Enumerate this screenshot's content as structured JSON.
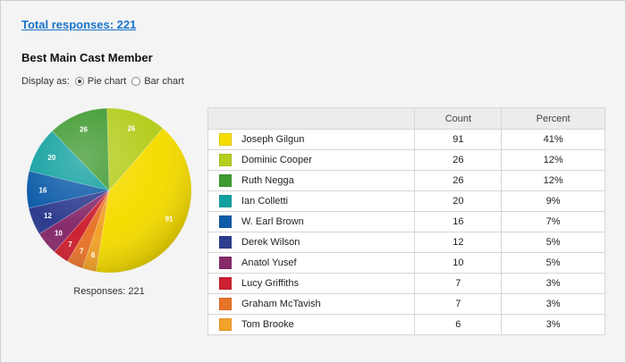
{
  "header": {
    "total_link": "Total responses: 221"
  },
  "question": {
    "title": "Best Main Cast Member",
    "display_label": "Display as:",
    "options": [
      {
        "label": "Pie chart",
        "selected": true
      },
      {
        "label": "Bar chart",
        "selected": false
      }
    ]
  },
  "chart_footer": "Responses: 221",
  "table": {
    "headers": [
      "",
      "Count",
      "Percent"
    ]
  },
  "chart_data": {
    "type": "pie",
    "total": 221,
    "slices": [
      {
        "label": "Joseph Gilgun",
        "value": 91,
        "percent": "41%",
        "color": "#f5dc00"
      },
      {
        "label": "Dominic Cooper",
        "value": 26,
        "percent": "12%",
        "color": "#b5cd1f"
      },
      {
        "label": "Ruth Negga",
        "value": 26,
        "percent": "12%",
        "color": "#3f9a30"
      },
      {
        "label": "Ian Colletti",
        "value": 20,
        "percent": "9%",
        "color": "#11a0a0"
      },
      {
        "label": "W. Earl Brown",
        "value": 16,
        "percent": "7%",
        "color": "#0d5ca8"
      },
      {
        "label": "Derek Wilson",
        "value": 12,
        "percent": "5%",
        "color": "#2e3c8e"
      },
      {
        "label": "Anatol Yusef",
        "value": 10,
        "percent": "5%",
        "color": "#862a6a"
      },
      {
        "label": "Lucy Griffiths",
        "value": 7,
        "percent": "3%",
        "color": "#cc2130"
      },
      {
        "label": "Graham McTavish",
        "value": 7,
        "percent": "3%",
        "color": "#e8742a"
      },
      {
        "label": "Tom Brooke",
        "value": 6,
        "percent": "3%",
        "color": "#f2a22a"
      }
    ]
  }
}
